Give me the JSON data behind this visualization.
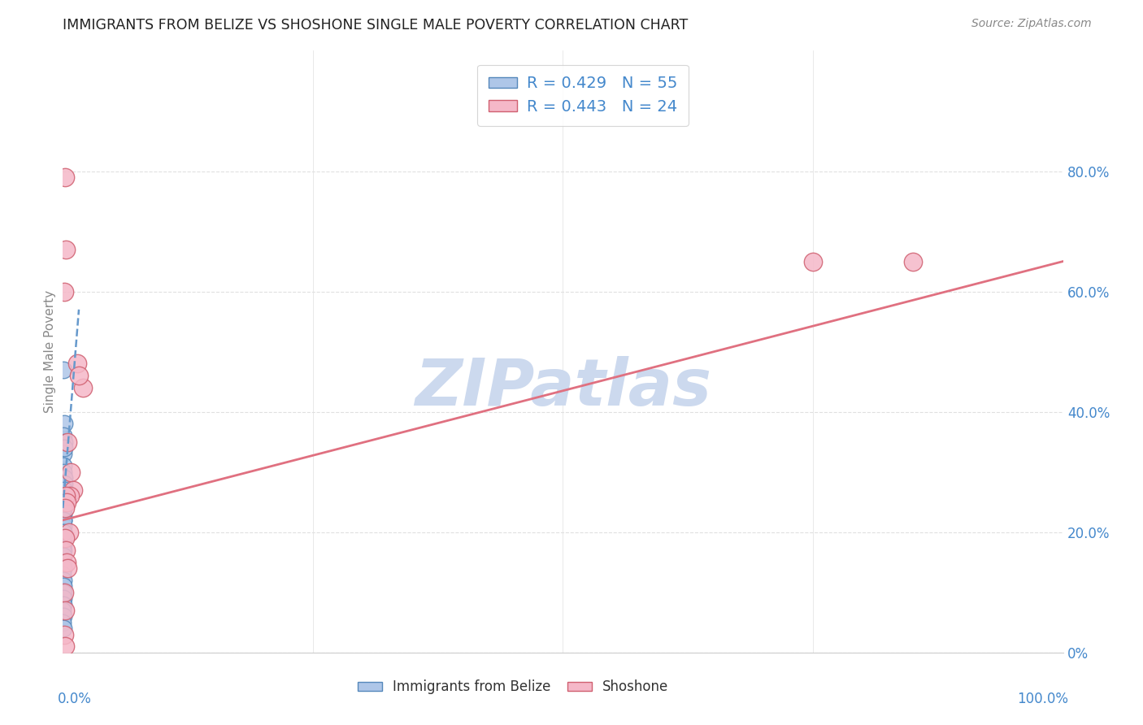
{
  "title": "IMMIGRANTS FROM BELIZE VS SHOSHONE SINGLE MALE POVERTY CORRELATION CHART",
  "source": "Source: ZipAtlas.com",
  "ylabel": "Single Male Poverty",
  "legend1_label": "R = 0.429   N = 55",
  "legend2_label": "R = 0.443   N = 24",
  "belize_color": "#aec6e8",
  "shoshone_color": "#f5b8c8",
  "belize_edge_color": "#5588bb",
  "shoshone_edge_color": "#d06070",
  "belize_line_color": "#6699cc",
  "shoshone_line_color": "#e07080",
  "watermark_color": "#ccd9ee",
  "axis_label_color": "#4488cc",
  "ylabel_color": "#888888",
  "title_color": "#222222",
  "source_color": "#888888",
  "grid_color": "#e0e0e0",
  "background_color": "#ffffff",
  "belize_x": [
    0.0005,
    0.001,
    0.0008,
    0.0003,
    0.0012,
    0.0007,
    0.0015,
    0.0006,
    0.0009,
    0.0004,
    0.0002,
    0.0011,
    0.0008,
    0.0005,
    0.0003,
    0.0001,
    0.0014,
    0.0007,
    0.0004,
    0.0002,
    0.0001,
    0.0003,
    0.0006,
    0.0009,
    0.0002,
    0.0004,
    0.0001,
    0.0002,
    0.0003,
    0.0001,
    0.0002,
    0.0001,
    0.0003,
    0.0004,
    0.0002,
    0.0001,
    0.0003,
    0.0002,
    0.0001,
    0.0004,
    0.0002,
    0.0001,
    0.0003,
    0.0001,
    0.0002,
    0.0011,
    0.0013,
    0.0016,
    0.0009,
    0.0007,
    0.0005,
    0.0004,
    0.0003,
    0.0001,
    0.0002
  ],
  "belize_y": [
    0.47,
    0.38,
    0.36,
    0.34,
    0.35,
    0.33,
    0.34,
    0.31,
    0.3,
    0.28,
    0.29,
    0.27,
    0.26,
    0.25,
    0.24,
    0.25,
    0.27,
    0.25,
    0.24,
    0.23,
    0.22,
    0.22,
    0.21,
    0.2,
    0.2,
    0.19,
    0.19,
    0.18,
    0.17,
    0.17,
    0.16,
    0.15,
    0.15,
    0.14,
    0.14,
    0.13,
    0.12,
    0.11,
    0.1,
    0.1,
    0.09,
    0.08,
    0.08,
    0.07,
    0.06,
    0.29,
    0.28,
    0.27,
    0.26,
    0.25,
    0.24,
    0.22,
    0.2,
    0.05,
    0.04
  ],
  "shoshone_x": [
    0.002,
    0.003,
    0.001,
    0.005,
    0.008,
    0.01,
    0.007,
    0.014,
    0.02,
    0.016,
    0.003,
    0.004,
    0.002,
    0.006,
    0.002,
    0.003,
    0.004,
    0.005,
    0.75,
    0.85,
    0.001,
    0.002,
    0.001,
    0.002
  ],
  "shoshone_y": [
    0.79,
    0.67,
    0.6,
    0.35,
    0.3,
    0.27,
    0.26,
    0.48,
    0.44,
    0.46,
    0.26,
    0.25,
    0.24,
    0.2,
    0.19,
    0.17,
    0.15,
    0.14,
    0.65,
    0.65,
    0.1,
    0.07,
    0.03,
    0.01
  ],
  "belize_trend_x": [
    0.0,
    0.016
  ],
  "belize_trend_y": [
    0.24,
    0.57
  ],
  "shoshone_trend_x": [
    0.0,
    1.0
  ],
  "shoshone_trend_y": [
    0.22,
    0.65
  ],
  "xlim": [
    0.0,
    1.0
  ],
  "ylim": [
    0.0,
    1.0
  ],
  "yticks": [
    0.0,
    0.2,
    0.4,
    0.6,
    0.8
  ],
  "ytick_labels": [
    "0%",
    "20.0%",
    "40.0%",
    "60.0%",
    "80.0%"
  ]
}
